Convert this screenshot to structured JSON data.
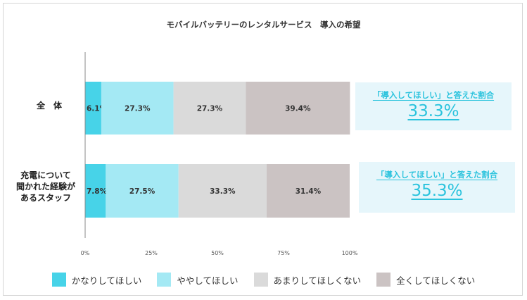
{
  "chart_data": {
    "type": "bar",
    "orientation": "horizontal-stacked",
    "title": "モバイルバッテリーのレンタルサービス　導入の希望",
    "categories": [
      "全　体",
      "充電について聞かれた経験があるスタッフ"
    ],
    "category_lines": [
      [
        "全　体"
      ],
      [
        "充電について",
        "聞かれた経験が",
        "あるスタッフ"
      ]
    ],
    "series": [
      {
        "name": "かなりしてほしい",
        "values": [
          6.1,
          7.8
        ],
        "color": "#47d3e8"
      },
      {
        "name": "ややしてほしい",
        "values": [
          27.3,
          27.5
        ],
        "color": "#a4e9f4"
      },
      {
        "name": "あまりしてほしくない",
        "values": [
          27.3,
          33.3
        ],
        "color": "#dadada"
      },
      {
        "name": "全くしてほしくない",
        "values": [
          39.4,
          31.4
        ],
        "color": "#cbc3c3"
      }
    ],
    "xlim": [
      0,
      100
    ],
    "xticks": [
      "0%",
      "25%",
      "50%",
      "75%",
      "100%"
    ],
    "xtick_values": [
      0,
      25,
      50,
      75,
      100
    ],
    "legend_position": "bottom",
    "annotations": [
      {
        "label": "「導入してほしい」と答えた割合",
        "value": "33.3%"
      },
      {
        "label": "「導入してほしい」と答えた割合",
        "value": "35.3%"
      }
    ]
  }
}
